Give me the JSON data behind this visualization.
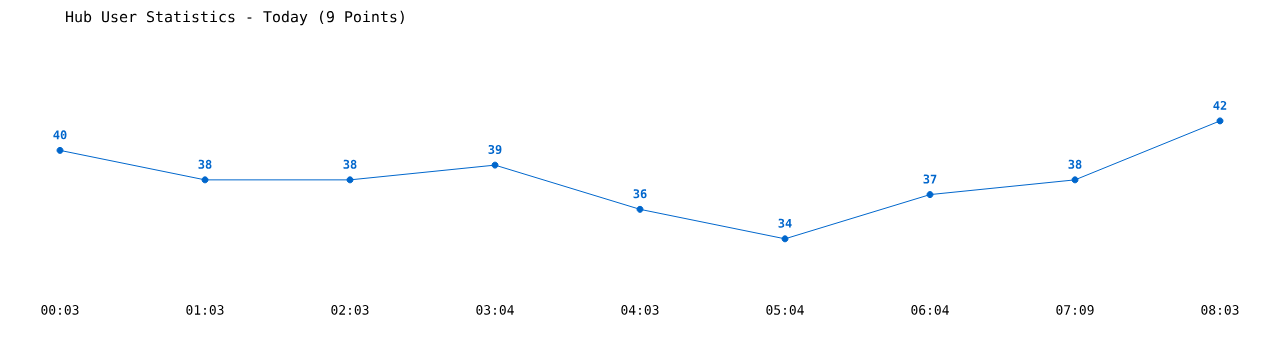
{
  "chart_data": {
    "type": "line",
    "title": "Hub User Statistics - Today (9 Points)",
    "categories": [
      "00:03",
      "01:03",
      "02:03",
      "03:04",
      "04:03",
      "05:04",
      "06:04",
      "07:09",
      "08:03"
    ],
    "values": [
      40,
      38,
      38,
      39,
      36,
      34,
      37,
      38,
      42
    ],
    "color": "#0066cc",
    "marker": "circle",
    "line_style": "solid",
    "data_labels": true
  }
}
